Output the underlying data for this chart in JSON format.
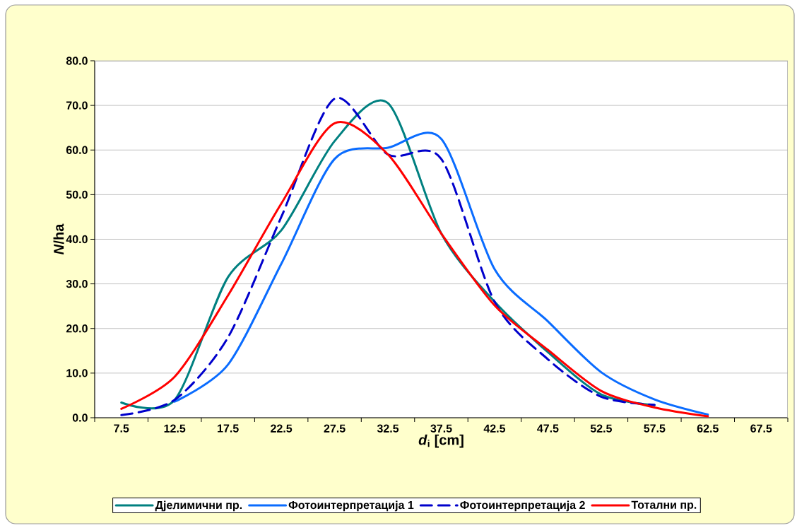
{
  "chart_data": {
    "type": "line",
    "xlabel": "*d*$_{i}$ [cm]",
    "ylabel": "*N*/ha",
    "categories": [
      "7.5",
      "12.5",
      "17.5",
      "22.5",
      "27.5",
      "32.5",
      "37.5",
      "42.5",
      "47.5",
      "52.5",
      "57.5",
      "62.5",
      "67.5"
    ],
    "series": [
      {
        "name": "Дјелимични пр.",
        "color": "#008080",
        "line_style": "solid",
        "values": [
          3.4,
          4.0,
          31.5,
          42.0,
          62.0,
          70.5,
          41.3,
          26.0,
          14.7,
          5.2,
          2.8,
          null,
          null
        ]
      },
      {
        "name": "Фотоинтерпретација 1",
        "color": "#0a6cff",
        "line_style": "solid",
        "values": [
          null,
          3.6,
          11.9,
          34.5,
          58.0,
          60.5,
          62.5,
          33.3,
          21.6,
          10.2,
          4.1,
          0.7,
          null
        ]
      },
      {
        "name": "Фотоинтерпретација 2",
        "color": "#0000cc",
        "line_style": "dashed",
        "values": [
          0.6,
          4.0,
          18.0,
          45.0,
          71.5,
          59.0,
          58.0,
          26.0,
          13.1,
          4.7,
          2.9,
          null,
          null
        ]
      },
      {
        "name": "Тотални пр.",
        "color": "#ff0000",
        "line_style": "solid",
        "values": [
          2.0,
          9.2,
          27.4,
          48.0,
          66.0,
          59.0,
          41.3,
          25.2,
          15.2,
          6.0,
          2.3,
          0.3,
          null
        ]
      }
    ],
    "ylim": [
      0,
      80
    ],
    "yticks": [
      {
        "value": 0,
        "label": "0.0"
      },
      {
        "value": 10,
        "label": "10.0"
      },
      {
        "value": 20,
        "label": "20.0"
      },
      {
        "value": 30,
        "label": "30.0"
      },
      {
        "value": 40,
        "label": "40.0"
      },
      {
        "value": 50,
        "label": "50.0"
      },
      {
        "value": 60,
        "label": "60.0"
      },
      {
        "value": 70,
        "label": "70.0"
      },
      {
        "value": 80,
        "label": "80.0"
      }
    ],
    "grid": "y",
    "legend": "bottom",
    "marker": "none"
  }
}
